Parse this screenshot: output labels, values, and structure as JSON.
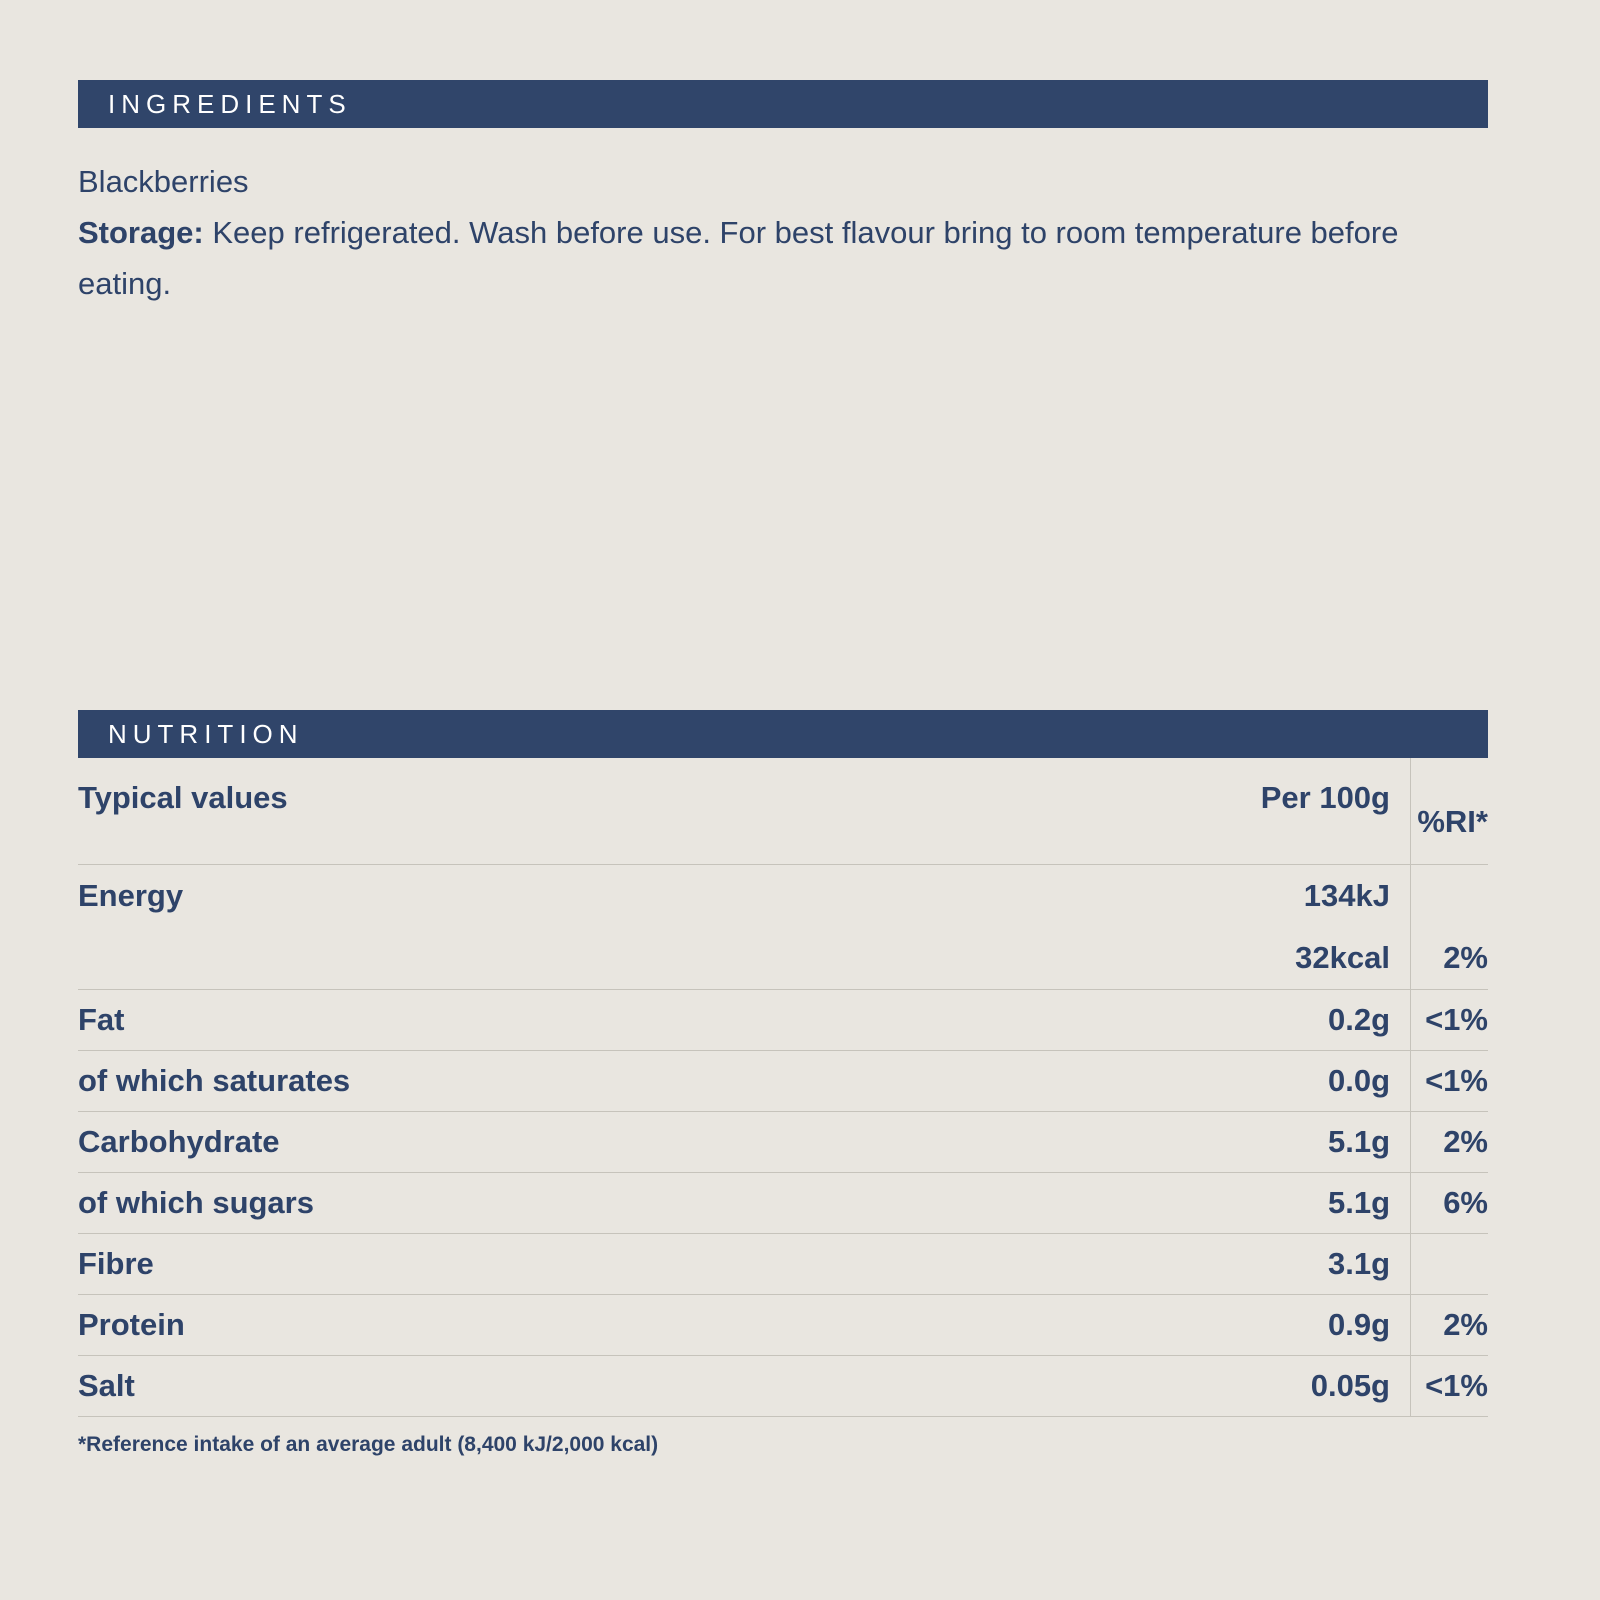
{
  "page": {
    "background_color": "#e9e6e0",
    "accent_color": "#30456a",
    "text_color": "#2e4369"
  },
  "ingredients": {
    "title": "INGREDIENTS",
    "item": "Blackberries",
    "storage_label": "Storage:",
    "storage_text": "Keep refrigerated. Wash before use. For best flavour bring to room temperature before eating."
  },
  "nutrition": {
    "title": "NUTRITION",
    "columns": {
      "label": "Typical values",
      "per": "Per 100g",
      "ri": "%RI*"
    },
    "rows": [
      {
        "label": "Energy",
        "value": "134kJ",
        "value2": "32kcal",
        "ri": "",
        "ri2": "2%"
      },
      {
        "label": "Fat",
        "value": "0.2g",
        "ri": "<1%"
      },
      {
        "label": "of which saturates",
        "value": "0.0g",
        "ri": "<1%"
      },
      {
        "label": "Carbohydrate",
        "value": "5.1g",
        "ri": "2%"
      },
      {
        "label": "of which sugars",
        "value": "5.1g",
        "ri": "6%"
      },
      {
        "label": "Fibre",
        "value": "3.1g",
        "ri": ""
      },
      {
        "label": "Protein",
        "value": "0.9g",
        "ri": "2%"
      },
      {
        "label": "Salt",
        "value": "0.05g",
        "ri": "<1%"
      }
    ],
    "footnote": "*Reference intake of an average adult (8,400 kJ/2,000 kcal)"
  }
}
